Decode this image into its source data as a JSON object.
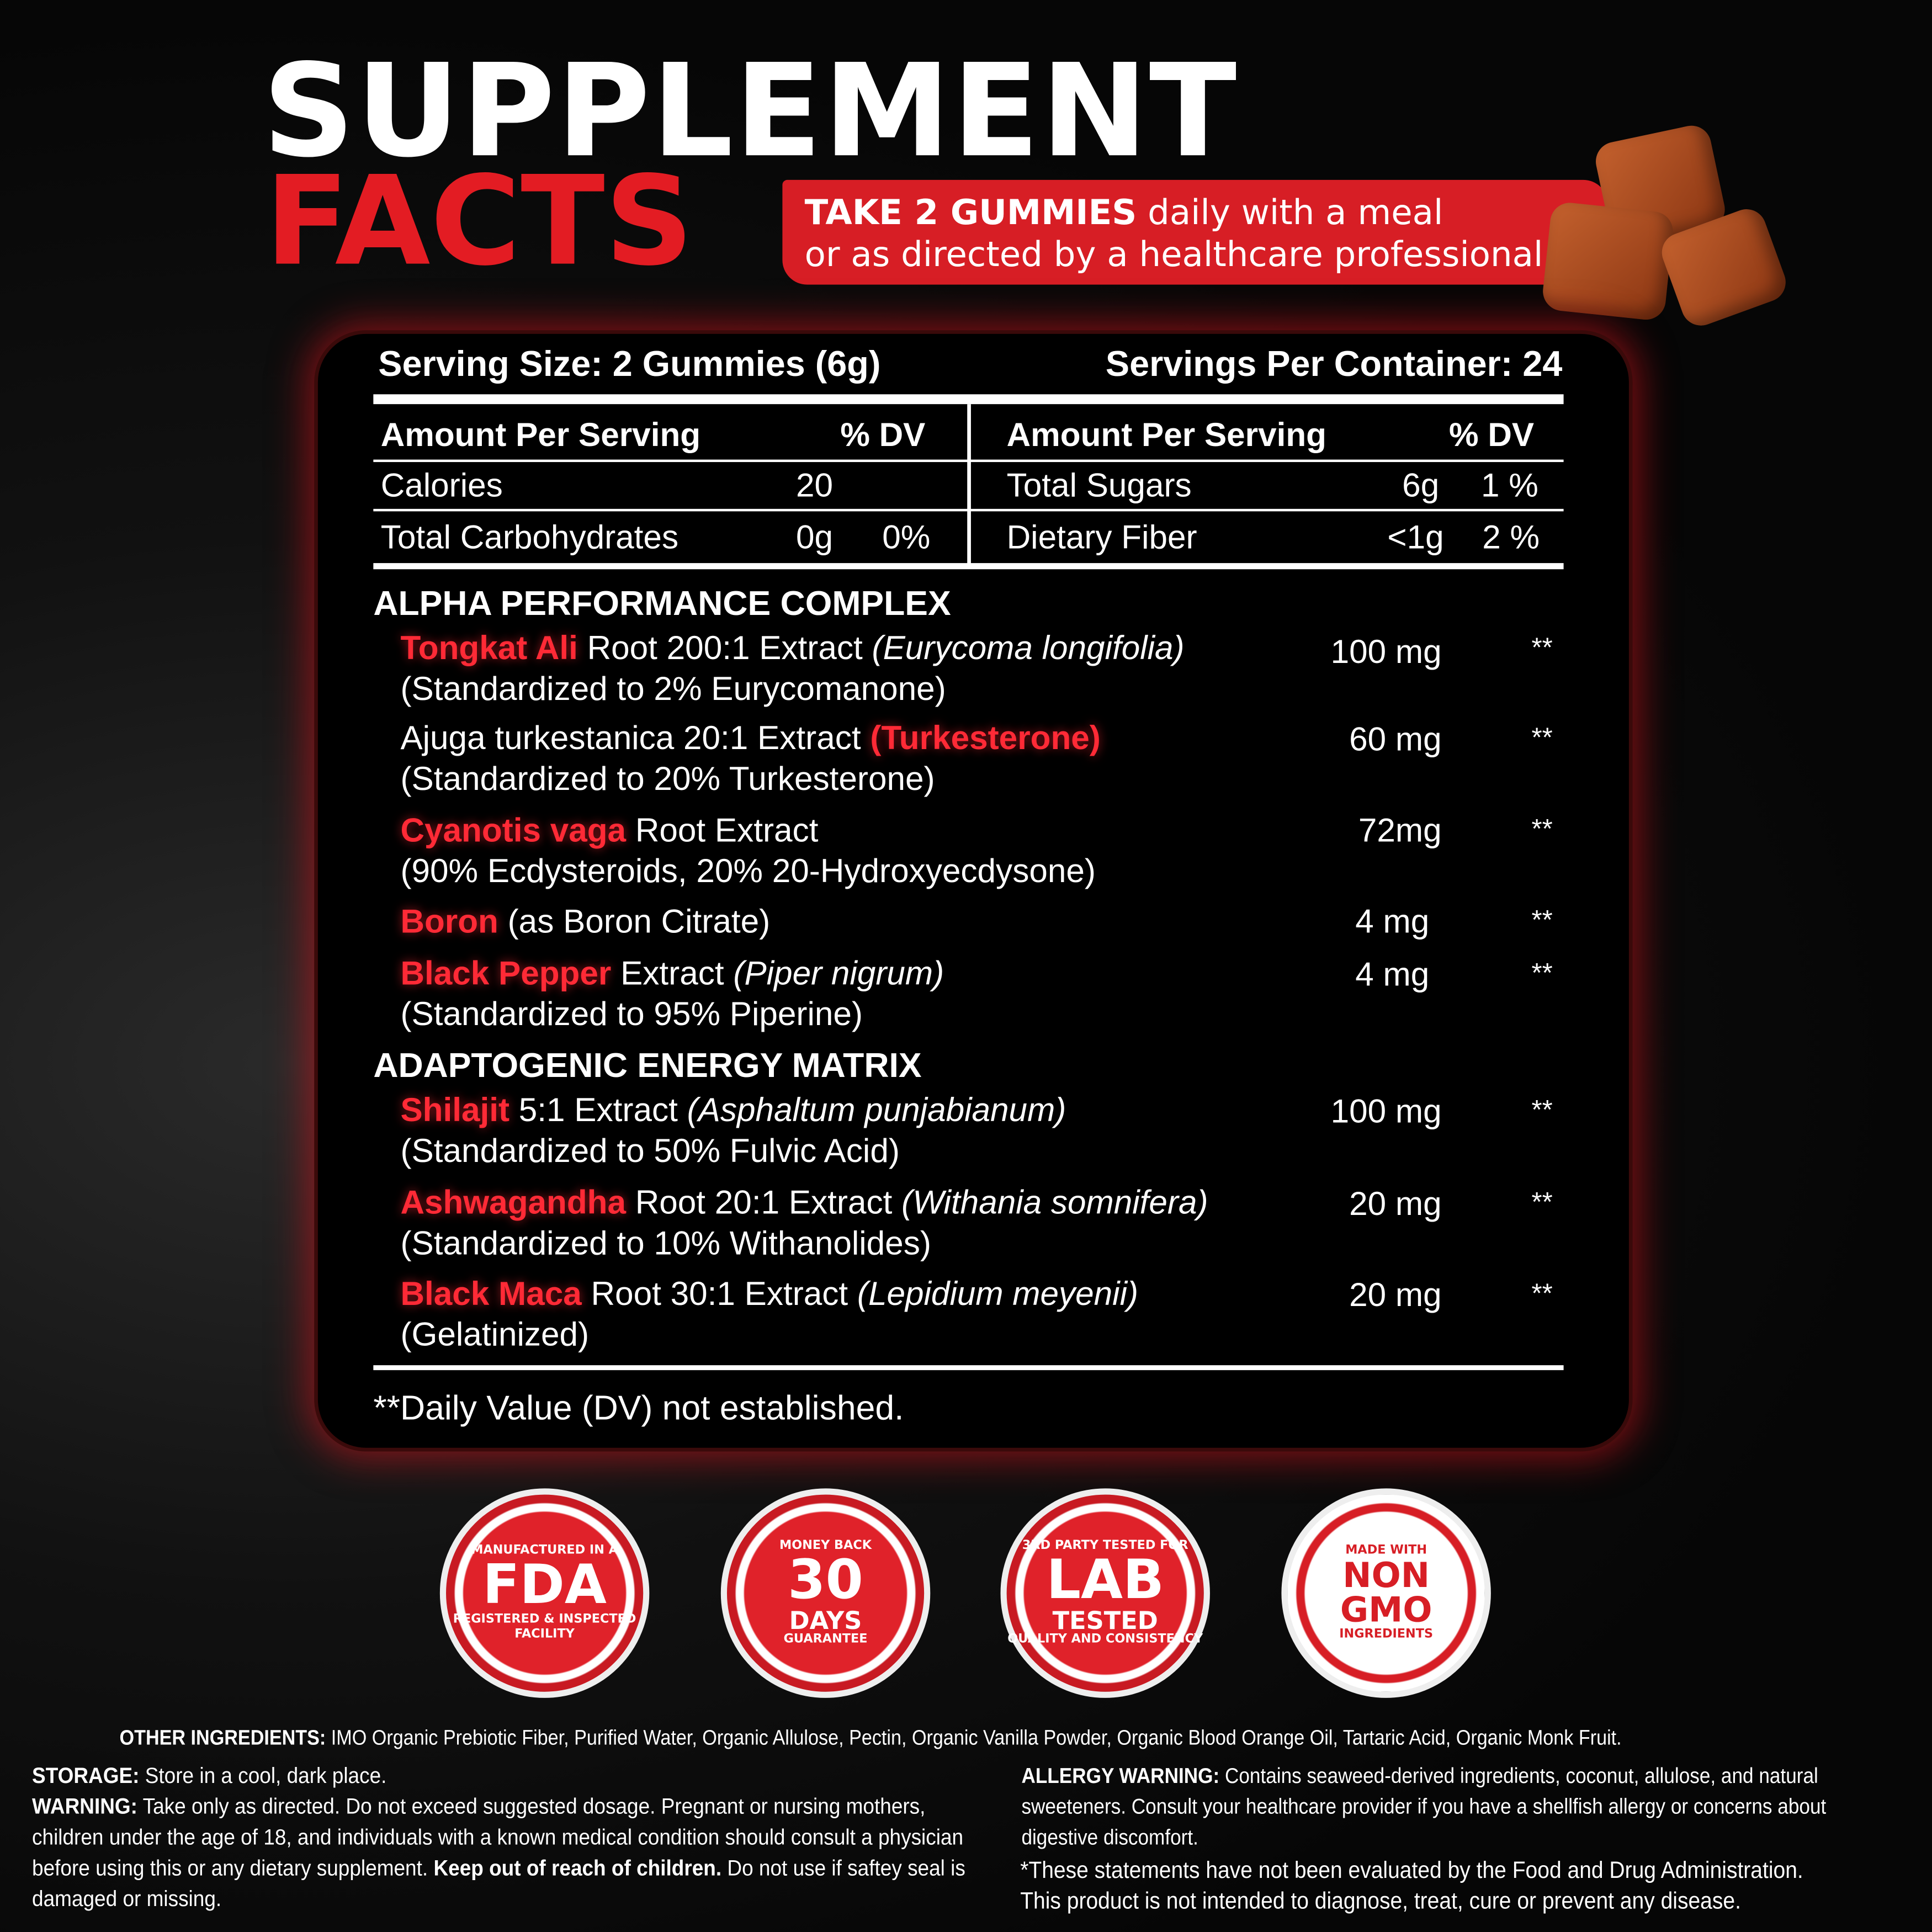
{
  "title": {
    "line1": "SUPPLEMENT",
    "line2": "FACTS"
  },
  "directions": {
    "bold": "TAKE 2 GUMMIES",
    "rest": " daily with a meal",
    "line2": "or as directed by a healthcare professional."
  },
  "colors": {
    "accent": "#e31c23",
    "background": "#080808"
  },
  "serving": {
    "size": "Serving Size: 2 Gummies (6g)",
    "per_container": "Servings Per Container: 24"
  },
  "nutrition": {
    "left": {
      "header": "Amount Per Serving",
      "dv": "% DV",
      "rows": [
        {
          "name": "Calories",
          "amount": "20",
          "dv": ""
        },
        {
          "name": "Total Carbohydrates",
          "amount": "0g",
          "dv": "0%"
        }
      ]
    },
    "right": {
      "header": "Amount Per Serving",
      "dv": "% DV",
      "rows": [
        {
          "name": "Total Sugars",
          "amount": "6g",
          "dv": "1 %"
        },
        {
          "name": "Dietary Fiber",
          "amount": "<1g",
          "dv": "2 %"
        }
      ]
    }
  },
  "sections": [
    {
      "title": "ALPHA PERFORMANCE COMPLEX",
      "items": [
        {
          "name": "Tongkat Ali",
          "desc": " Root 200:1 Extract ",
          "latin": "(Eurycoma longifolia)",
          "line2": "(Standardized to 2% Eurycomanone)",
          "amount": "100 mg",
          "dv": "**"
        },
        {
          "name": "(Turkesterone)",
          "pre": "Ajuga turkestanica 20:1 Extract ",
          "line2": "(Standardized to 20% Turkesterone)",
          "amount": "60 mg",
          "dv": "**"
        },
        {
          "name": "Cyanotis vaga",
          "desc": " Root Extract",
          "line2": "(90% Ecdysteroids, 20% 20-Hydroxyecdysone)",
          "amount": "72mg",
          "dv": "**"
        },
        {
          "name": "Boron",
          "desc": " (as Boron Citrate)",
          "amount": "4 mg",
          "dv": "**"
        },
        {
          "name": "Black Pepper",
          "desc": " Extract ",
          "latin": "(Piper nigrum)",
          "line2": "(Standardized to 95% Piperine)",
          "amount": "4 mg",
          "dv": "**"
        }
      ]
    },
    {
      "title": "ADAPTOGENIC ENERGY MATRIX",
      "items": [
        {
          "name": "Shilajit",
          "desc": " 5:1 Extract ",
          "latin": "(Asphaltum punjabianum)",
          "line2": "(Standardized to 50% Fulvic Acid)",
          "amount": "100 mg",
          "dv": "**"
        },
        {
          "name": "Ashwagandha",
          "desc": " Root 20:1 Extract ",
          "latin": "(Withania somnifera)",
          "line2": "(Standardized to 10% Withanolides)",
          "amount": "20 mg",
          "dv": "**"
        },
        {
          "name": "Black Maca",
          "desc": " Root 30:1 Extract ",
          "latin": "(Lepidium meyenii)",
          "line2": "(Gelatinized)",
          "amount": "20 mg",
          "dv": "**"
        }
      ]
    }
  ],
  "footnote": "**Daily Value (DV) not established.",
  "badges": [
    {
      "top": "MANUFACTURED IN A",
      "main": "FDA",
      "bottom": "REGISTERED & INSPECTED FACILITY"
    },
    {
      "top": "MONEY BACK",
      "main": "30",
      "sub": "DAYS",
      "bottom": "GUARANTEE"
    },
    {
      "top": "3RD PARTY TESTED FOR",
      "main": "LAB",
      "sub": "TESTED",
      "bottom": "QUALITY AND CONSISTENCY"
    },
    {
      "top": "MADE WITH",
      "main": "NON",
      "sub": "GMO",
      "bottom": "INGREDIENTS"
    }
  ],
  "other_ingredients": {
    "label": "OTHER INGREDIENTS:",
    "text": " IMO Organic Prebiotic Fiber, Purified Water, Organic Allulose, Pectin, Organic Vanilla Powder, Organic Blood Orange Oil, Tartaric Acid, Organic Monk Fruit."
  },
  "storage": {
    "label": "STORAGE:",
    "text": " Store in a cool, dark place."
  },
  "warning": {
    "label": "WARNING:",
    "text": " Take only as directed. Do not exceed suggested dosage. Pregnant or nursing mothers, children under the age of 18, and individuals with a known medical condition should consult a physician before using this or any dietary supplement.",
    "keep_bold": "Keep out of reach of children.",
    "keep_rest": " Do not use if saftey seal is damaged or missing."
  },
  "allergy": {
    "label": "ALLERGY WARNING:",
    "text": " Contains seaweed-derived ingredients, coconut, allulose, and natural sweeteners. Consult your healthcare provider if you have a shellfish allergy or concerns about digestive discomfort."
  },
  "disclaimer": {
    "line1": "*These statements have not been evaluated by the Food and Drug Administration.",
    "line2": "This product is not intended to diagnose, treat, cure or prevent any disease."
  }
}
